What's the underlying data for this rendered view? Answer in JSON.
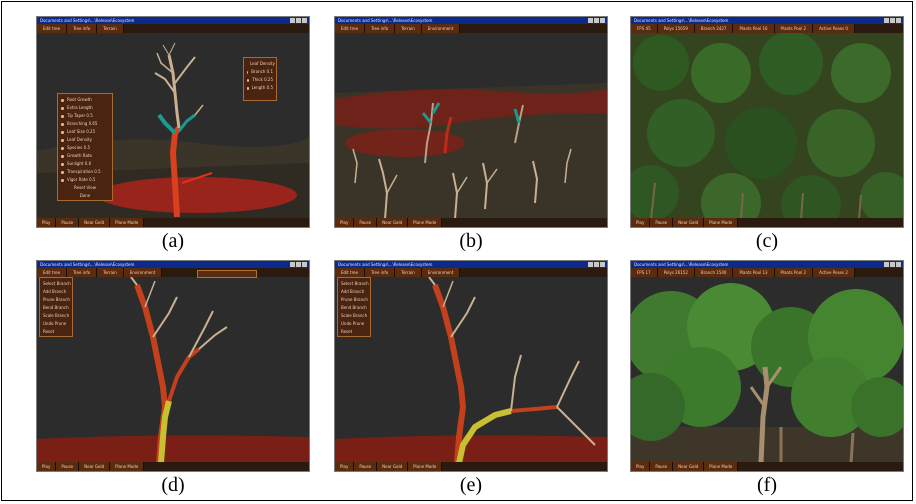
{
  "figure": {
    "panels": [
      {
        "id": "a",
        "caption": "(a)",
        "title": "Documents and Settings\\...\\Release\\Ecosystem"
      },
      {
        "id": "b",
        "caption": "(b)",
        "title": "Documents and Settings\\...\\Release\\Ecosystem"
      },
      {
        "id": "c",
        "caption": "(c)",
        "title": "Documents and Settings\\...\\Release\\Ecosystem"
      },
      {
        "id": "d",
        "caption": "(d)",
        "title": "Documents and Settings\\...\\Release\\Ecosystem"
      },
      {
        "id": "e",
        "caption": "(e)",
        "title": "Documents and Settings\\...\\Release\\Ecosystem"
      },
      {
        "id": "f",
        "caption": "(f)",
        "title": "Documents and Settings\\...\\Release\\Ecosystem"
      }
    ]
  },
  "menus": {
    "editor": [
      "Edit tree",
      "Tree info",
      "Terrain",
      "Environment"
    ],
    "stats_c": [
      "FPS 45",
      "Polys 15659",
      "Branch 2427",
      "Plants Pool 16",
      "Plants Pool 2",
      "Active Poses 0"
    ],
    "stats_f": [
      "FPS 17",
      "Polys 26152",
      "Branch 1540",
      "Plants Pool 13",
      "Plants Pool 2",
      "Active Poses 2"
    ]
  },
  "bottom_toolbar": [
    "Play",
    "Pause",
    "Near Gold",
    "Plane Mode"
  ],
  "tool_panel_a": [
    "Root Growth",
    "Extra Length",
    "Tip Taper 0.5",
    "Branching 0.65",
    "Leaf Size 0.25",
    "Leaf Density",
    "Species 0.5",
    "Growth Rate",
    "Sunlight 0.6",
    "Transpiration 0.5",
    "Vigor Rate 0.5",
    "Reset View",
    "Done"
  ],
  "tool_panel_a_right": [
    "Leaf Density",
    "Branch 0.1",
    "Thick 0.25",
    "Length 0.5"
  ],
  "tool_panel_d": [
    "Select Branch",
    "Add Branch",
    "Prune Branch",
    "Bend Branch",
    "Scale Branch",
    "Undo Prune",
    "Reset"
  ],
  "colors": {
    "window_title": "#0b2a8c",
    "menu_bg": "#5b2b10",
    "sky": "#2c2c2c",
    "selection_red": "#b3231a"
  }
}
